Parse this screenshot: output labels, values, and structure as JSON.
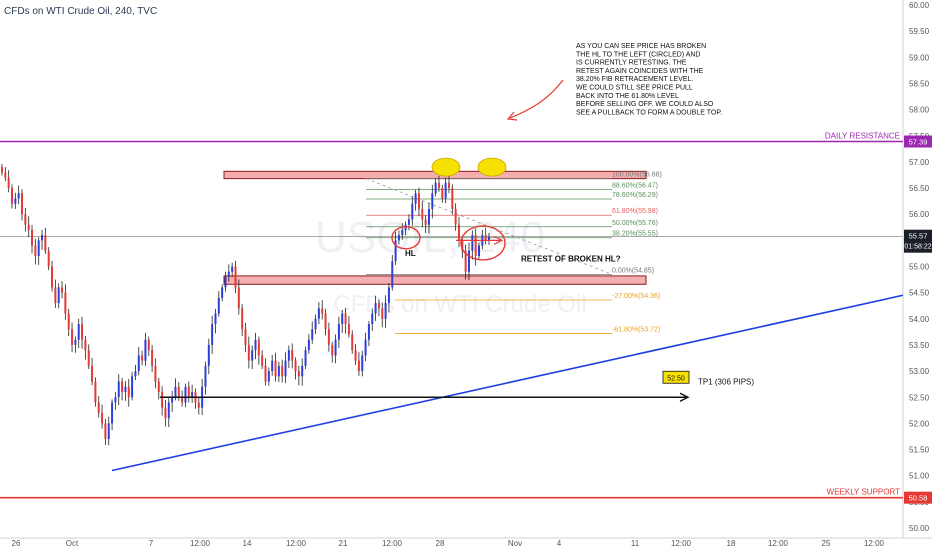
{
  "header": {
    "title": "CFDs on WTI Crude Oil, 240, TVC"
  },
  "watermark": {
    "symbol": "USOIL, 240",
    "name": "CFDs on WTI Crude Oil"
  },
  "colors": {
    "up": "#2b3fd9",
    "down": "#e53935",
    "wick": "#222222",
    "resistance": "#9c27b0",
    "support": "#e53935",
    "trend": "#1e40e0",
    "zone_fill": "#f4aeb0",
    "zone_border": "#8b1a1a",
    "fib_green": "#5a8f5a",
    "fib_red": "#e06060",
    "fib_orange": "#f0a020",
    "bubble": "#f5e000",
    "annotation_red": "#e53935"
  },
  "chart_data": {
    "type": "candlestick",
    "y_axis": {
      "min": 50.0,
      "max": 60.0,
      "ticks": [
        "60.00",
        "59.50",
        "59.00",
        "58.50",
        "58.00",
        "57.50",
        "57.00",
        "56.50",
        "56.00",
        "55.50",
        "55.00",
        "54.50",
        "54.00",
        "53.50",
        "53.00",
        "52.50",
        "52.00",
        "51.50",
        "51.00",
        "50.50",
        "50.00"
      ]
    },
    "x_axis": {
      "ticks": [
        "26",
        "Oct",
        "7",
        "12:00",
        "14",
        "12:00",
        "21",
        "12:00",
        "28",
        "Nov",
        "4",
        "11",
        "12:00",
        "18",
        "12:00",
        "25",
        "12:00"
      ]
    },
    "last_price": {
      "price": "55.57",
      "countdown": "01:58:22"
    },
    "levels": [
      {
        "label": "DAILY RESISTANCE",
        "price": "57.39",
        "value": 57.39
      },
      {
        "label": "WEEKLY SUPPORT",
        "price": "50.58",
        "value": 50.58
      }
    ],
    "fibonacci": [
      {
        "label": "100.00%(56.68)",
        "value": 56.68,
        "kind": "grey"
      },
      {
        "label": "88.60%(56.47)",
        "value": 56.47,
        "kind": "green"
      },
      {
        "label": "78.60%(56.29)",
        "value": 56.29,
        "kind": "green"
      },
      {
        "label": "61.80%(55.98)",
        "value": 55.98,
        "kind": "red"
      },
      {
        "label": "50.00%(55.76)",
        "value": 55.76,
        "kind": "green"
      },
      {
        "label": "38.20%(55.55)",
        "value": 55.55,
        "kind": "green"
      },
      {
        "label": "0.00%(54.85)",
        "value": 54.85,
        "kind": "grey"
      },
      {
        "label": "-27.00%(54.36)",
        "value": 54.36,
        "kind": "orange"
      },
      {
        "label": "-61.80%(53.72)",
        "value": 53.72,
        "kind": "orange"
      }
    ],
    "target": {
      "label": "TP1 (306 PIPS)",
      "price_tag": "52.50",
      "value": 52.5
    },
    "annotations": {
      "note": [
        "AS YOU CAN SEE PRICE HAS BROKEN",
        "THE HL TO THE LEFT (CIRCLED) AND",
        "IS CURRENTLY RETESTING. THE",
        "RETEST AGAIN COINCIDES WITH THE",
        "38.20% FIB RETRACEMENT LEVEL.",
        "WE COULD STILL SEE PRICE PULL",
        "BACK INTO THE 61.80% LEVEL",
        "BEFORE SELLING OFF. WE COULD ALSO",
        "SEE A PULLBACK TO FORM A DOUBLE TOP."
      ],
      "retest": "RETEST OF BROKEN HL?",
      "hl": "HL"
    },
    "zones": [
      {
        "top": 56.82,
        "bottom": 56.68
      },
      {
        "top": 54.82,
        "bottom": 54.66
      }
    ],
    "trendline": {
      "from": [
        0,
        51.1
      ],
      "to": [
        1,
        54.45
      ]
    },
    "closes": [
      56.8,
      56.7,
      56.5,
      56.2,
      56.3,
      56.4,
      56.0,
      55.8,
      55.7,
      55.4,
      55.2,
      55.5,
      55.6,
      55.3,
      55.0,
      54.6,
      54.3,
      54.6,
      54.5,
      54.1,
      53.8,
      53.5,
      53.6,
      53.9,
      53.6,
      53.4,
      53.1,
      52.8,
      52.4,
      52.2,
      52.0,
      51.7,
      52.0,
      52.4,
      52.5,
      52.8,
      52.6,
      52.7,
      52.5,
      52.9,
      53.0,
      53.3,
      53.2,
      53.6,
      53.4,
      53.1,
      52.8,
      52.6,
      52.3,
      52.1,
      52.4,
      52.5,
      52.7,
      52.5,
      52.4,
      52.7,
      52.5,
      52.6,
      52.4,
      52.3,
      52.7,
      53.1,
      53.5,
      53.9,
      54.1,
      54.4,
      54.6,
      54.8,
      54.9,
      55.0,
      54.6,
      54.2,
      53.8,
      53.5,
      53.2,
      53.4,
      53.6,
      53.3,
      53.1,
      52.8,
      53.0,
      53.2,
      52.9,
      53.1,
      52.9,
      53.2,
      53.4,
      53.2,
      53.0,
      52.9,
      53.1,
      53.4,
      53.6,
      53.8,
      54.0,
      54.2,
      54.1,
      53.8,
      53.5,
      53.3,
      53.6,
      53.9,
      54.1,
      53.9,
      53.7,
      53.4,
      53.2,
      53.0,
      53.3,
      53.6,
      53.9,
      54.1,
      54.3,
      54.2,
      54.0,
      54.3,
      54.6,
      55.1,
      55.5,
      55.6,
      55.7,
      55.8,
      55.9,
      56.2,
      56.4,
      56.1,
      55.9,
      55.8,
      56.1,
      56.4,
      56.6,
      56.5,
      56.3,
      56.6,
      56.5,
      56.1,
      55.8,
      55.5,
      55.3,
      54.9,
      55.3,
      55.6,
      55.2,
      55.4,
      55.6,
      55.5,
      55.57
    ]
  }
}
